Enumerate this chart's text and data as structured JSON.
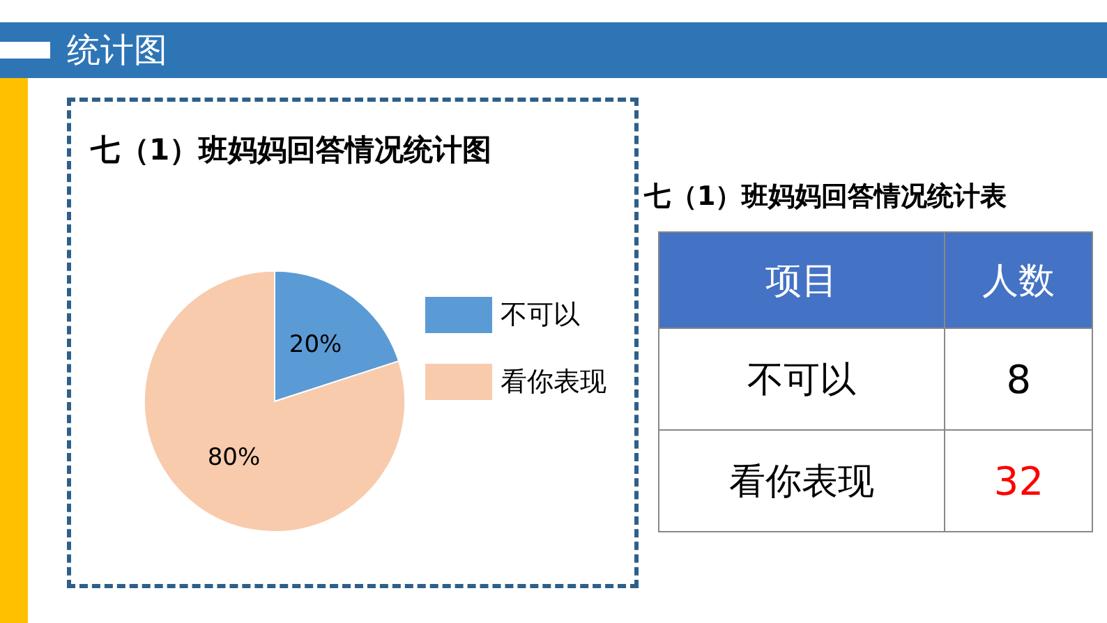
{
  "chart_data": [
    {
      "type": "pie",
      "title": "七（1）班妈妈回答情况统计图",
      "annotations": [
        "统计图"
      ],
      "categories": [
        "不可以",
        "看你表现"
      ],
      "values": [
        20,
        80
      ],
      "colors": [
        "#5b9bd5",
        "#f8cbad"
      ],
      "value_labels": [
        "20%",
        "80%"
      ],
      "legend": "right"
    },
    {
      "type": "other",
      "title": "七（1）班妈妈回答情况统计表",
      "annotations": [
        "项目",
        "人数"
      ],
      "categories": [
        "不可以",
        "看你表现"
      ],
      "values": [
        8,
        32
      ],
      "colors": [
        "#000000",
        "#ff0000"
      ],
      "data_labels": true
    }
  ]
}
